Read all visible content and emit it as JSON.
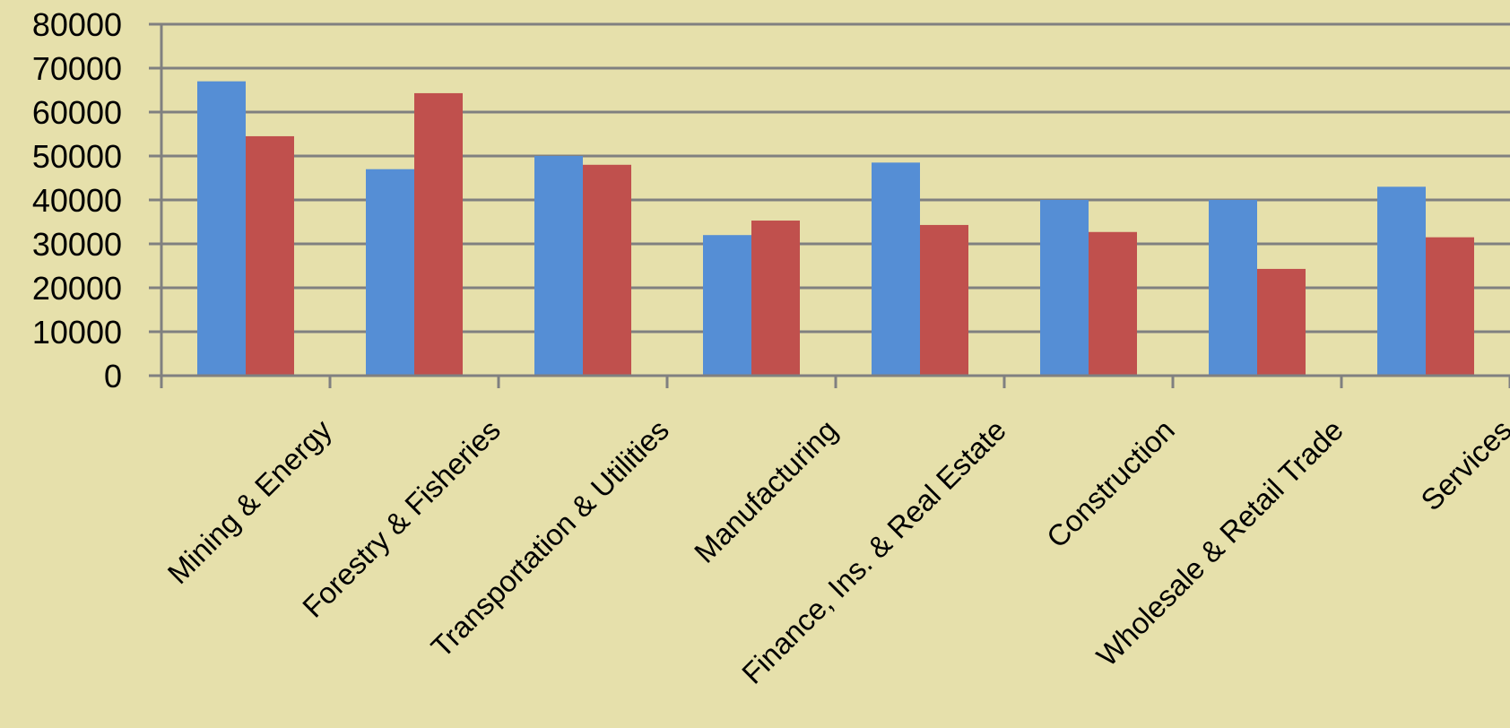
{
  "chart_data": {
    "type": "bar",
    "title": "",
    "xlabel": "",
    "ylabel": "",
    "categories": [
      "Mining & Energy",
      "Forestry & Fisheries",
      "Transportation & Utilities",
      "Manufacturing",
      "Finance, Ins. & Real Estate",
      "Construction",
      "Wholesale & Retail Trade",
      "Services"
    ],
    "series": [
      {
        "values": [
          67000,
          47000,
          50000,
          32000,
          48500,
          40000,
          40000,
          43000
        ]
      },
      {
        "values": [
          54500,
          64300,
          48000,
          35300,
          34300,
          32700,
          24300,
          31500
        ]
      }
    ],
    "ylim": [
      0,
      80000
    ],
    "yticks": [
      "0",
      "10000",
      "20000",
      "30000",
      "40000",
      "50000",
      "60000",
      "70000",
      "80000"
    ],
    "grid": true,
    "legend": "none",
    "colors": {
      "background": "#e6e0ab",
      "series": [
        "#558ed5",
        "#c0504d"
      ],
      "grid": "#808080"
    }
  }
}
